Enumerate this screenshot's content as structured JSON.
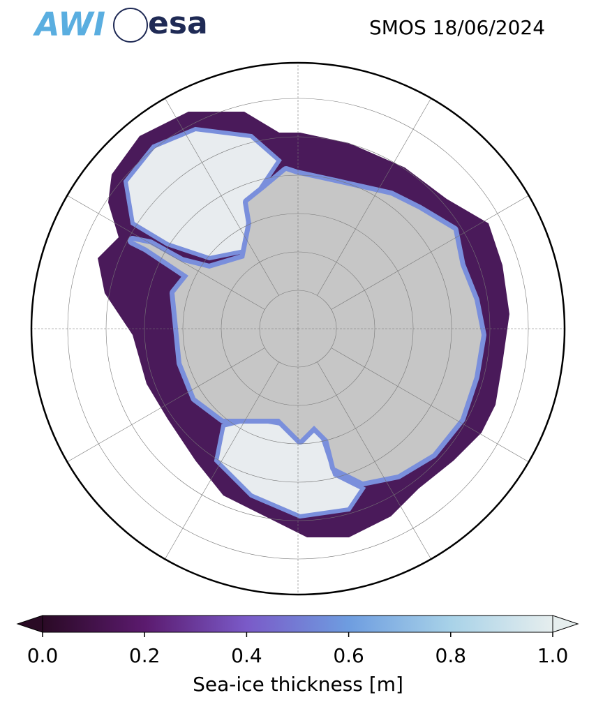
{
  "logos": [
    "AWI",
    "esa"
  ],
  "chart_data": {
    "type": "colorbar",
    "title": "SMOS 18/06/2024",
    "colorbar_label": "Sea-ice thickness [m]",
    "clim": [
      0,
      1
    ],
    "cticks": [
      {
        "value": 0,
        "label": "0.0"
      },
      {
        "value": 0.2,
        "label": "0.2"
      },
      {
        "value": 0.4,
        "label": "0.4"
      },
      {
        "value": 0.6,
        "label": "0.6"
      },
      {
        "value": 0.8,
        "label": "0.8"
      },
      {
        "value": 1,
        "label": "1.0"
      }
    ],
    "colormap": [
      "#2a0a25",
      "#5b1a6e",
      "#7a5ac8",
      "#6e9de0",
      "#a8d2e8",
      "#e6eeee"
    ],
    "extend": "both"
  }
}
